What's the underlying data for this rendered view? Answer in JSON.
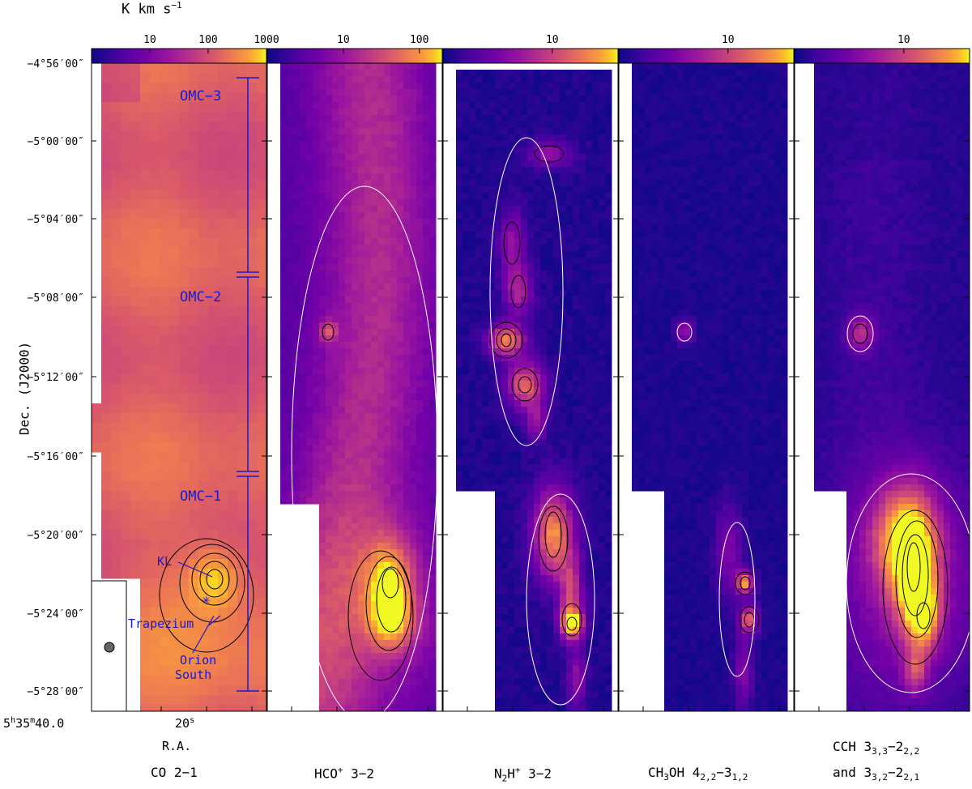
{
  "colorbar_unit": "K km s",
  "colorbar_unit_exp": "−1",
  "y_axis_label": "Dec. (J2000)",
  "x_axis_label": "R.A.",
  "x_ticks": {
    "main": "5",
    "h": "h",
    "m_val": "35",
    "m": "m",
    "s1": "40.0",
    "s_sup": "s",
    "t2": "20",
    "t2_sup": "s"
  },
  "region_labels": [
    "OMC−3",
    "OMC−2",
    "OMC−1"
  ],
  "source_labels": {
    "kl": "KL",
    "trapezium": "Trapezium",
    "orion_south_1": "Orion",
    "orion_south_2": "South"
  },
  "panel_titles": [
    {
      "main": "CO 2−1"
    },
    {
      "pre": "HCO",
      "sup": "+",
      "post": " 3−2"
    },
    {
      "pre": "N",
      "sub": "2",
      "mid": "H",
      "sup": "+",
      "post": " 3−2"
    },
    {
      "pre": "CH",
      "sub": "3",
      "mid": "OH 4",
      "sub2": "2,2",
      "mid2": "−3",
      "sub3": "1,2"
    },
    {
      "line1_pre": "CCH 3",
      "line1_sub1": "3,3",
      "line1_mid": "−2",
      "line1_sub2": "2,2",
      "line2_pre": "and 3",
      "line2_sub1": "3,2",
      "line2_mid": "−2",
      "line2_sub2": "2,1"
    }
  ],
  "colors": {
    "map_low": "#0d0887",
    "map_high": "#f0f921",
    "annotation": "#1a1acc",
    "contour_dark": "#000000",
    "contour_light": "#ffffff"
  },
  "chart_data": [
    {
      "type": "heatmap",
      "title": "CO 2−1",
      "colormap": "plasma",
      "colorbar_scale": "log",
      "colorbar_ticks": [
        "10",
        "100",
        "1000"
      ],
      "colorbar_range": [
        1,
        1000
      ],
      "ylabel": "Dec. (J2000)",
      "xlabel": "R.A.",
      "y_ticks": [
        "−4°56′00″",
        "−5°00′00″",
        "−5°04′00″",
        "−5°08′00″",
        "−5°12′00″",
        "−5°16′00″",
        "−5°20′00″",
        "−5°24′00″",
        "−5°28′00″"
      ],
      "ylim": [
        "−4°56′00″",
        "−5°29′00″"
      ],
      "x_ticks": [
        "5h35m40.0s",
        "20s"
      ],
      "peaks": [
        {
          "name": "KL",
          "dec": "−5°22′30″",
          "level": 600
        },
        {
          "name": "Orion South",
          "dec": "−5°24′00″",
          "level": 400
        }
      ],
      "annotations": [
        "OMC−3",
        "OMC−2",
        "OMC−1",
        "KL",
        "Trapezium",
        "Orion South"
      ]
    },
    {
      "type": "heatmap",
      "title": "HCO+ 3−2",
      "colormap": "plasma",
      "colorbar_scale": "log",
      "colorbar_ticks": [
        "10",
        "100"
      ],
      "colorbar_range": [
        1,
        200
      ],
      "peaks": [
        {
          "dec": "−5°22′30″",
          "level": 150
        },
        {
          "dec": "−5°10′00″",
          "level": 40
        }
      ]
    },
    {
      "type": "heatmap",
      "title": "N2H+ 3−2",
      "colormap": "plasma",
      "colorbar_scale": "log",
      "colorbar_ticks": [
        "10"
      ],
      "colorbar_range": [
        1,
        40
      ],
      "peaks": [
        {
          "dec": "−5°10′00″",
          "level": 30
        },
        {
          "dec": "−5°12′00″",
          "level": 25
        },
        {
          "dec": "−5°20′00″",
          "level": 35
        },
        {
          "dec": "−5°24′00″",
          "level": 35
        }
      ]
    },
    {
      "type": "heatmap",
      "title": "CH3OH 4(2,2)−3(1,2)",
      "colormap": "plasma",
      "colorbar_scale": "log",
      "colorbar_ticks": [
        "10"
      ],
      "colorbar_range": [
        1,
        40
      ],
      "peaks": [
        {
          "dec": "−5°22′30″",
          "level": 35
        },
        {
          "dec": "−5°24′00″",
          "level": 30
        },
        {
          "dec": "−5°10′00″",
          "level": 10
        }
      ]
    },
    {
      "type": "heatmap",
      "title": "CCH 3(3,3)−2(2,2) and 3(3,2)−2(2,1)",
      "colormap": "plasma",
      "colorbar_scale": "log",
      "colorbar_ticks": [
        "10"
      ],
      "colorbar_range": [
        1,
        40
      ],
      "peaks": [
        {
          "dec": "−5°22′00″",
          "level": 35
        },
        {
          "dec": "−5°10′00″",
          "level": 15
        }
      ]
    }
  ]
}
